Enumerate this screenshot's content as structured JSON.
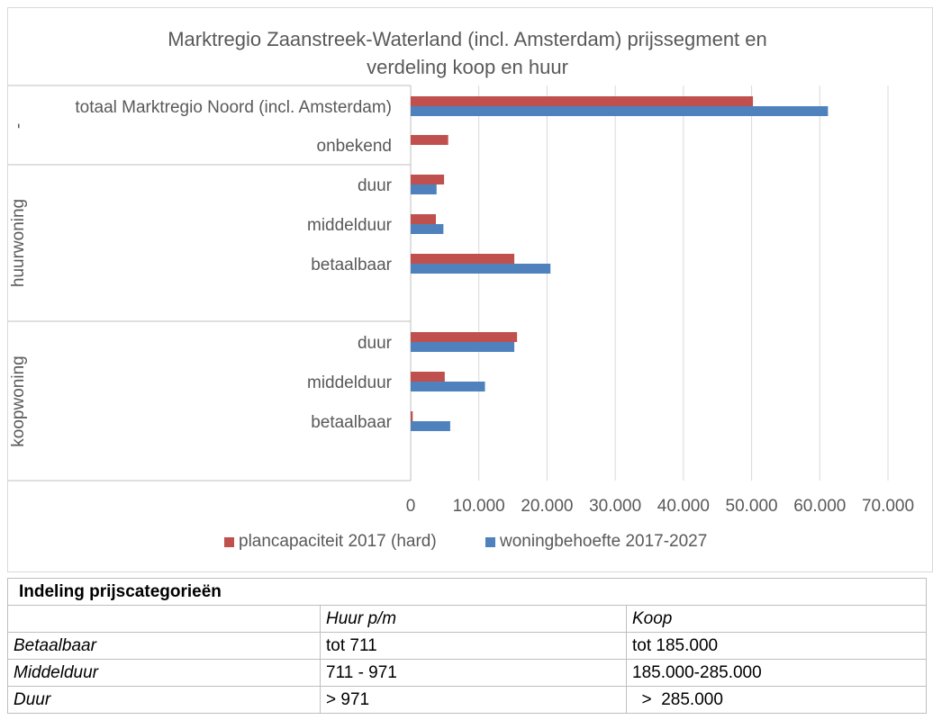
{
  "chart_data": {
    "type": "bar",
    "orientation": "horizontal",
    "title_lines": [
      "Marktregio Zaanstreek-Waterland (incl. Amsterdam) prijssegment en",
      "verdeling koop en huur"
    ],
    "groups": [
      {
        "label": "-",
        "categories": [
          "totaal Marktregio Noord (incl. Amsterdam)",
          "onbekend"
        ]
      },
      {
        "label": "huurwoning",
        "categories": [
          "duur",
          "middelduur",
          "betaalbaar"
        ]
      },
      {
        "label": "koopwoning",
        "categories": [
          "duur",
          "middelduur",
          "betaalbaar"
        ]
      }
    ],
    "categories": [
      "totaal Marktregio Noord (incl. Amsterdam)",
      "onbekend",
      "duur",
      "middelduur",
      "betaalbaar",
      "duur",
      "middelduur",
      "betaalbaar"
    ],
    "series": [
      {
        "name": "plancapaciteit 2017 (hard)",
        "color": "#c0504d",
        "values": [
          50200,
          5500,
          4900,
          3700,
          15200,
          15600,
          5000,
          300
        ]
      },
      {
        "name": "woningbehoefte 2017-2027",
        "color": "#4f81bd",
        "values": [
          61200,
          null,
          3800,
          4800,
          20500,
          15200,
          10900,
          5800
        ]
      }
    ],
    "xlim": [
      0,
      70000
    ],
    "x_ticks": [
      0,
      10000,
      20000,
      30000,
      40000,
      50000,
      60000,
      70000
    ],
    "x_tick_labels": [
      "0",
      "10.000",
      "20.000",
      "30.000",
      "40.000",
      "50.000",
      "60.000",
      "70.000"
    ],
    "grid": true,
    "legend_position": "bottom"
  },
  "table": {
    "title": "Indeling prijscategorieën",
    "header": [
      "",
      "Huur p/m",
      "Koop"
    ],
    "rows": [
      [
        "Betaalbaar",
        "tot 711",
        "tot 185.000"
      ],
      [
        "Middelduur",
        "711 - 971",
        "185.000-285.000"
      ],
      [
        "Duur",
        "> 971",
        "  >  285.000"
      ]
    ]
  }
}
